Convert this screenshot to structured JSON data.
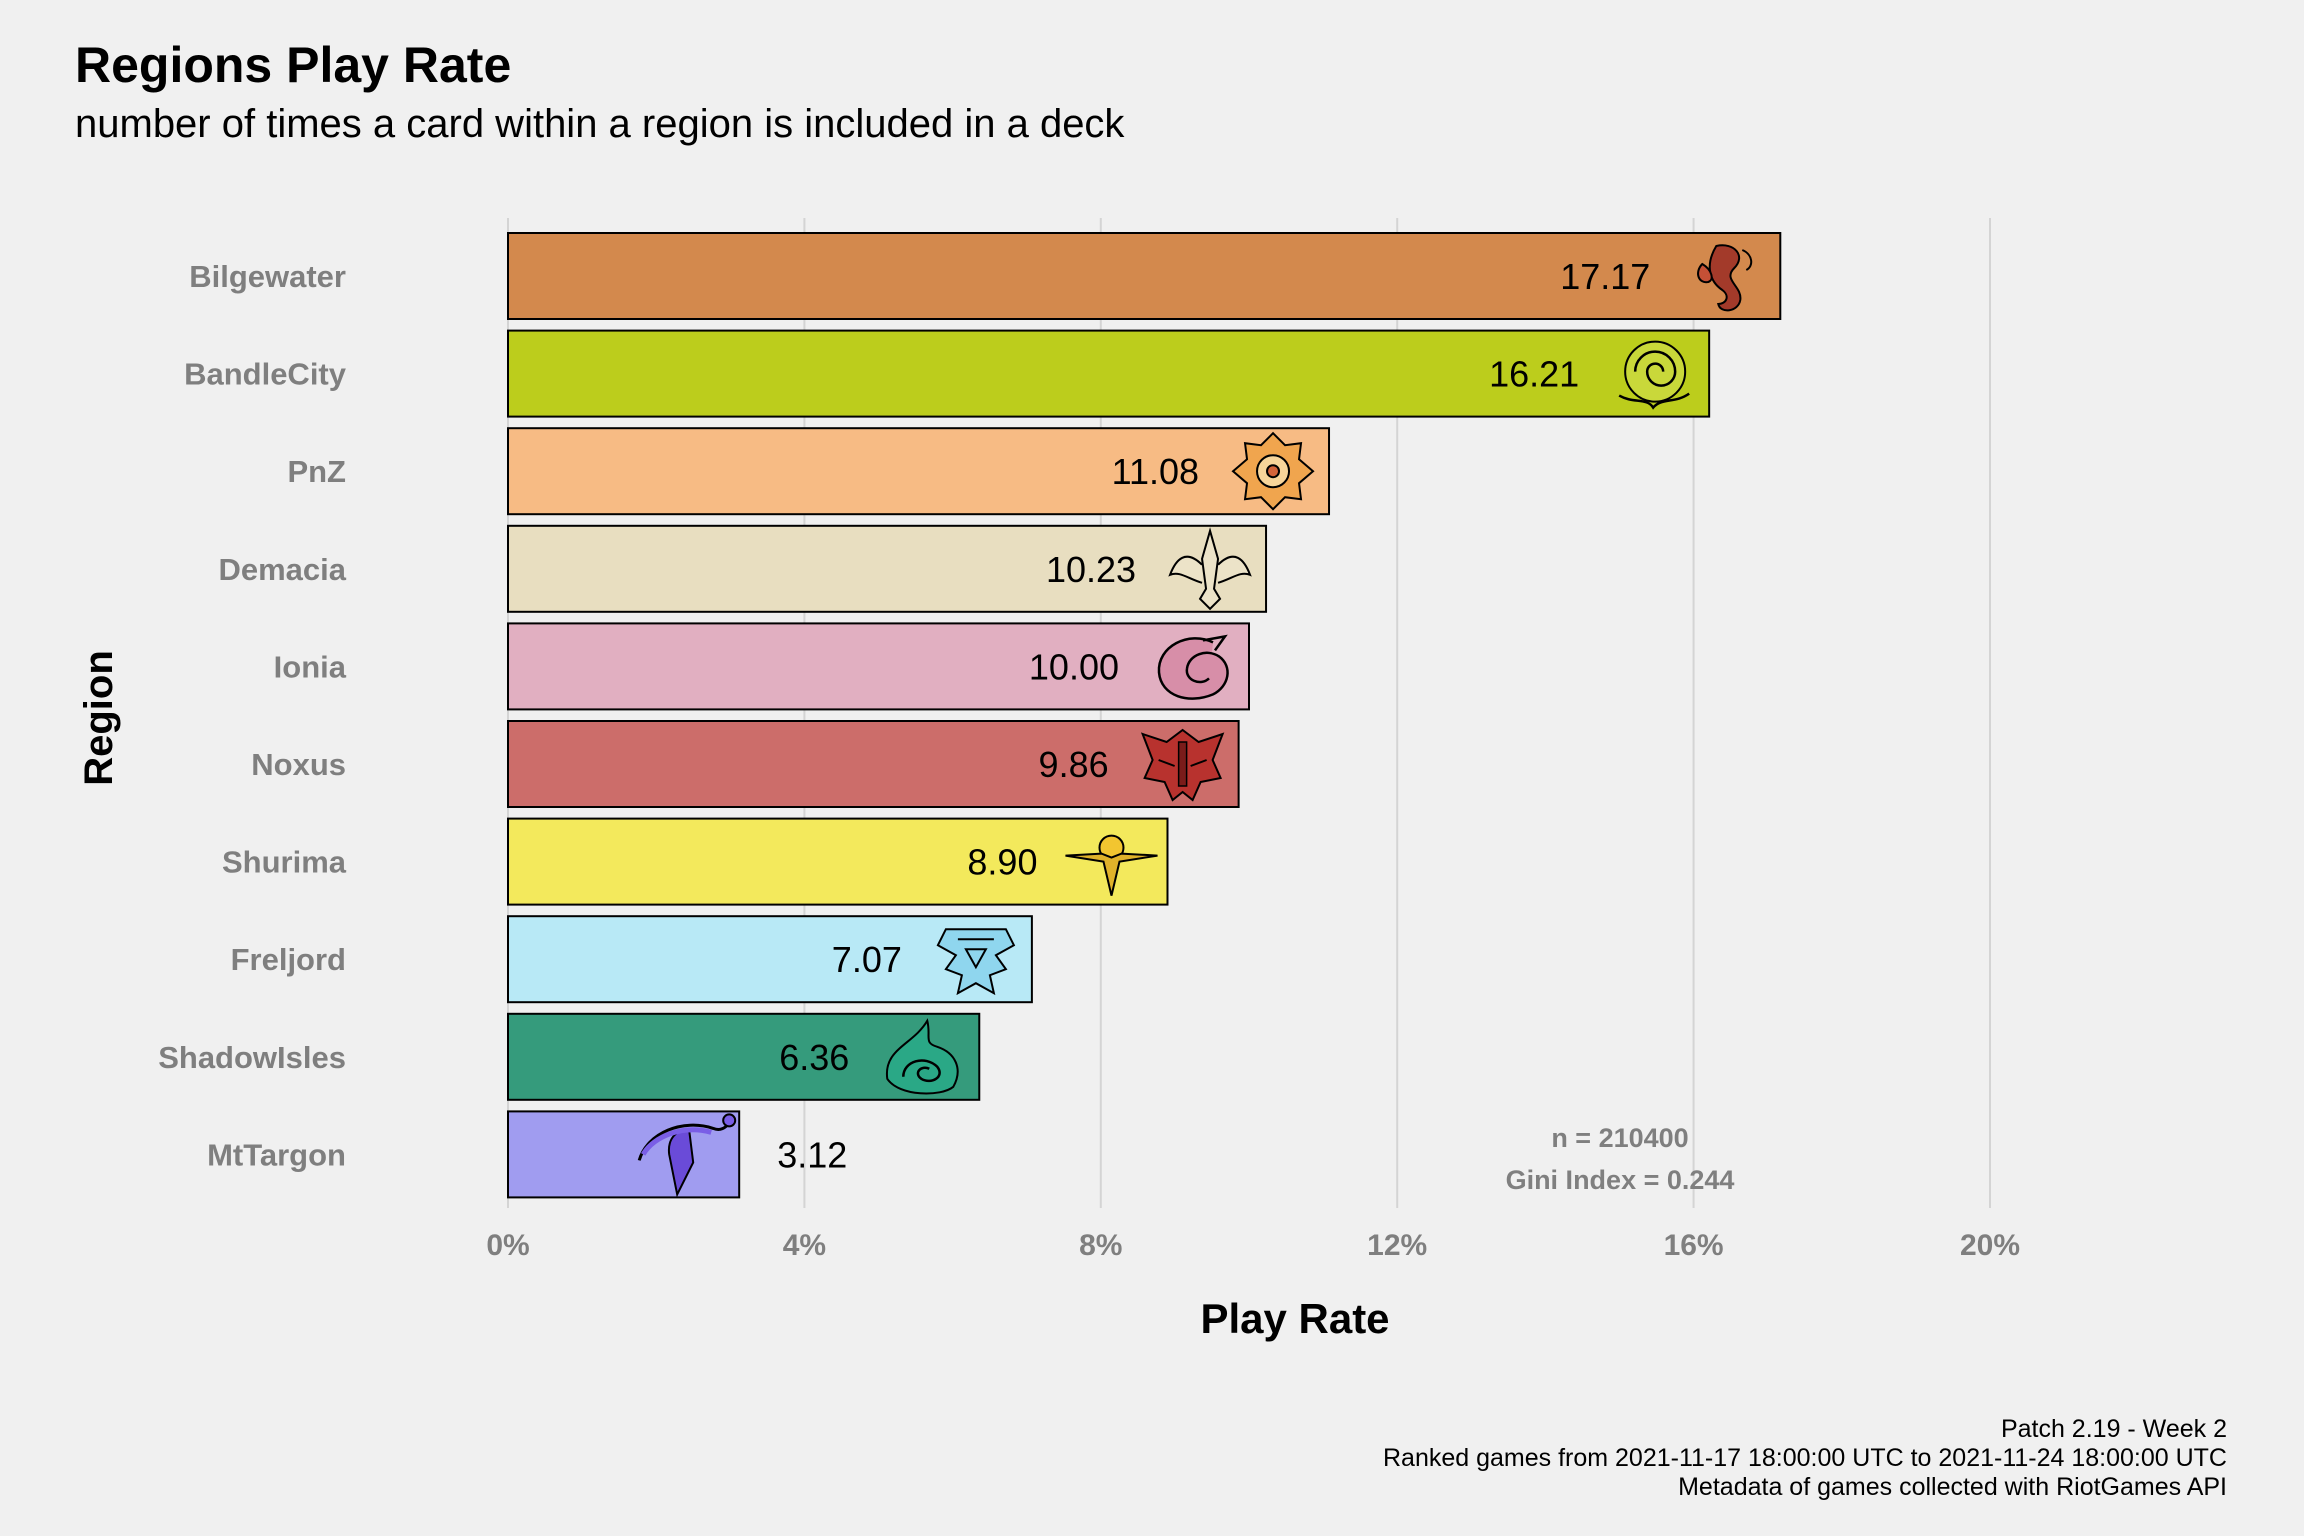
{
  "chart_data": {
    "type": "bar",
    "orientation": "horizontal",
    "title": "Regions Play Rate",
    "subtitle": "number of times a card within a region is included in a deck",
    "xlabel": "Play Rate",
    "ylabel": "Region",
    "xlim": [
      0,
      20
    ],
    "x_ticks": [
      {
        "value": 0,
        "label": "0%"
      },
      {
        "value": 4,
        "label": "4%"
      },
      {
        "value": 8,
        "label": "8%"
      },
      {
        "value": 12,
        "label": "12%"
      },
      {
        "value": 16,
        "label": "16%"
      },
      {
        "value": 20,
        "label": "20%"
      }
    ],
    "grid": "vertical",
    "legend": "none",
    "categories": [
      "Bilgewater",
      "BandleCity",
      "PnZ",
      "Demacia",
      "Ionia",
      "Noxus",
      "Shurima",
      "Freljord",
      "ShadowIsles",
      "MtTargon"
    ],
    "display_labels": [
      "Bilgewater",
      "BandleCity",
      "PnZ",
      "Demacia",
      "Ionia",
      "Noxus",
      "Shurima",
      "Freljord",
      "ShadowIsles",
      "MtTargon"
    ],
    "values": [
      17.17,
      16.21,
      11.08,
      10.23,
      10.0,
      9.86,
      8.9,
      7.07,
      6.36,
      3.12
    ],
    "value_labels": [
      "17.17",
      "16.21",
      "11.08",
      "10.23",
      "10.00",
      "9.86",
      "8.90",
      "7.07",
      "6.36",
      "3.12"
    ],
    "colors": [
      "#d3894d",
      "#bccd1c",
      "#f7bb84",
      "#e8dec0",
      "#e1afc1",
      "#cc6d6a",
      "#f3e95c",
      "#b8e9f6",
      "#359b7c",
      "#a09cf0"
    ],
    "icons": [
      "bilgewater-icon",
      "bandlecity-icon",
      "pnz-icon",
      "demacia-icon",
      "ionia-icon",
      "noxus-icon",
      "shurima-icon",
      "freljord-icon",
      "shadowisles-icon",
      "mttargon-icon"
    ],
    "annotations": [
      "n = 210400",
      "Gini Index = 0.244"
    ],
    "caption": [
      "Patch 2.19 - Week 2",
      "Ranked games from 2021-11-17 18:00:00 UTC to 2021-11-24 18:00:00 UTC",
      "Metadata of games collected with RiotGames API"
    ]
  }
}
